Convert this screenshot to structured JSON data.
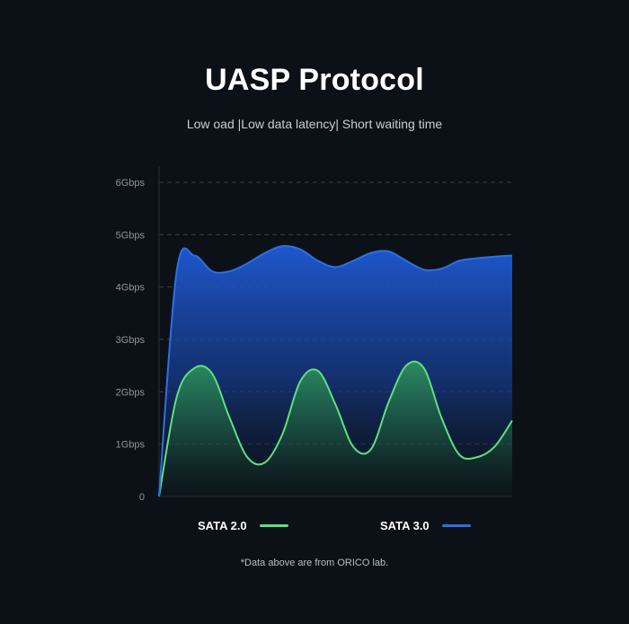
{
  "title": "UASP Protocol",
  "subtitle": "Low oad |Low data latency| Short waiting time",
  "note": "*Data above are from ORICO lab.",
  "chart_data": {
    "type": "area",
    "ylim": [
      0,
      6
    ],
    "y_ticks": [
      0,
      1,
      2,
      3,
      4,
      5,
      6
    ],
    "y_tick_labels": [
      "0",
      "1Gbps",
      "2Gbps",
      "3Gbps",
      "4Gbps",
      "5Gbps",
      "6Gbps"
    ],
    "grid": true,
    "legend_position": "bottom",
    "x": [
      0,
      5,
      10,
      15,
      20,
      25,
      30,
      35,
      40,
      45,
      50,
      55,
      60,
      65,
      70,
      75,
      80,
      85,
      90,
      95,
      100
    ],
    "series": [
      {
        "name": "SATA 2.0",
        "color": "#5ee07f",
        "values": [
          0,
          1.9,
          2.45,
          2.35,
          1.5,
          0.75,
          0.65,
          1.2,
          2.2,
          2.4,
          1.75,
          0.95,
          0.9,
          1.8,
          2.5,
          2.45,
          1.5,
          0.8,
          0.75,
          0.95,
          1.45
        ]
      },
      {
        "name": "SATA 3.0",
        "color": "#2f6fe0",
        "values": [
          0,
          4.3,
          4.6,
          4.3,
          4.3,
          4.45,
          4.65,
          4.78,
          4.72,
          4.5,
          4.38,
          4.5,
          4.65,
          4.68,
          4.5,
          4.33,
          4.35,
          4.5,
          4.55,
          4.58,
          4.6
        ]
      }
    ]
  }
}
